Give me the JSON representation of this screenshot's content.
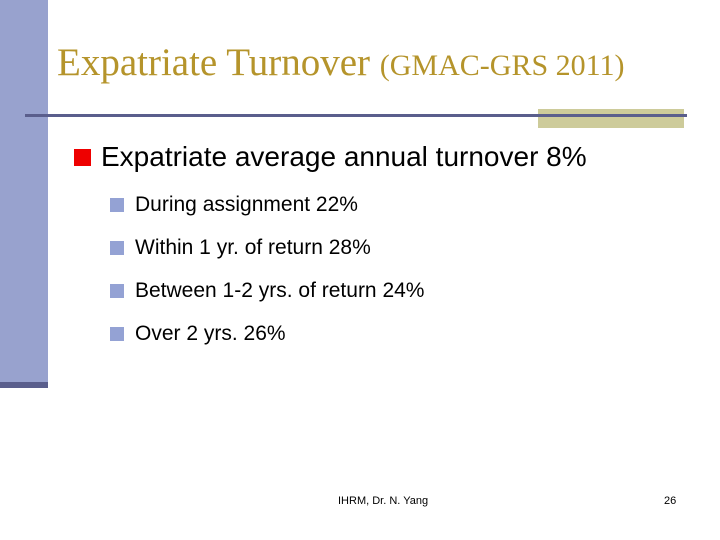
{
  "slide": {
    "title": {
      "main": "Expatriate Turnover ",
      "annotation": "(GMAC-GRS 2011)"
    },
    "content": {
      "main_bullet": "Expatriate average annual turnover 8%",
      "sub_bullets": [
        "During assignment 22%",
        "Within 1 yr. of return 28%",
        "Between 1-2 yrs. of return 24%",
        "Over 2 yrs. 26%"
      ]
    },
    "footer": {
      "credit": "IHRM, Dr. N. Yang",
      "page_number": "26"
    },
    "colors": {
      "background_white": "#FFFFFF",
      "sidebar_periwinkle": "#98A2CE",
      "accent_navy": "#5A5E8C",
      "accent_tan": "#CDCB9A",
      "title_gold": "#B5942B",
      "bullet_red": "#EE0000",
      "bullet_blue": "#94A2D4",
      "text_black": "#000000"
    }
  }
}
